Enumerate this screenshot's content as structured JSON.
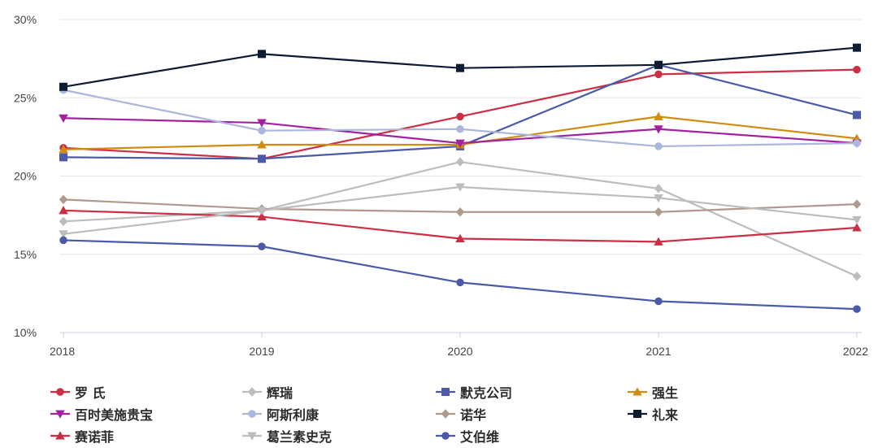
{
  "chart_data": {
    "type": "line",
    "title": "",
    "xlabel": "",
    "ylabel": "",
    "x": [
      "2018",
      "2019",
      "2020",
      "2021",
      "2022"
    ],
    "ylim": [
      10,
      30
    ],
    "yticks": [
      10,
      15,
      20,
      25,
      30
    ],
    "ytick_labels": [
      "10%",
      "15%",
      "20%",
      "25%",
      "30%"
    ],
    "grid": true,
    "legend_position": "bottom",
    "series": [
      {
        "name": "罗 氏",
        "color": "#cc2e43",
        "marker": "circle",
        "values": [
          21.8,
          21.1,
          23.8,
          26.5,
          26.8
        ]
      },
      {
        "name": "辉瑞",
        "color": "#bdbdbd",
        "marker": "diamond",
        "values": [
          17.1,
          17.8,
          20.9,
          19.2,
          13.6
        ]
      },
      {
        "name": "默克公司",
        "color": "#4a5aa8",
        "marker": "square",
        "values": [
          21.2,
          21.1,
          21.9,
          27.1,
          23.9
        ]
      },
      {
        "name": "强生",
        "color": "#d08c10",
        "marker": "triangle-up",
        "values": [
          21.7,
          22.0,
          22.0,
          23.8,
          22.4
        ]
      },
      {
        "name": "百时美施贵宝",
        "color": "#a3219e",
        "marker": "triangle-down",
        "values": [
          23.7,
          23.4,
          22.1,
          23.0,
          22.1
        ]
      },
      {
        "name": "阿斯利康",
        "color": "#aab6dc",
        "marker": "circle",
        "values": [
          25.5,
          22.9,
          23.0,
          21.9,
          22.1
        ]
      },
      {
        "name": "诺华",
        "color": "#b09a8e",
        "marker": "diamond",
        "values": [
          18.5,
          17.9,
          17.7,
          17.7,
          18.2
        ]
      },
      {
        "name": "礼来",
        "color": "#0d1b33",
        "marker": "square",
        "values": [
          25.7,
          27.8,
          26.9,
          27.1,
          28.2
        ]
      },
      {
        "name": "赛诺菲",
        "color": "#cc2e43",
        "marker": "triangle-up",
        "values": [
          17.8,
          17.4,
          16.0,
          15.8,
          16.7
        ]
      },
      {
        "name": "葛兰素史克",
        "color": "#bdbdbd",
        "marker": "triangle-down",
        "values": [
          16.3,
          17.8,
          19.3,
          18.6,
          17.2
        ]
      },
      {
        "name": "艾伯维",
        "color": "#4a5aa8",
        "marker": "circle",
        "values": [
          15.9,
          15.5,
          13.2,
          12.0,
          11.5
        ]
      }
    ]
  }
}
